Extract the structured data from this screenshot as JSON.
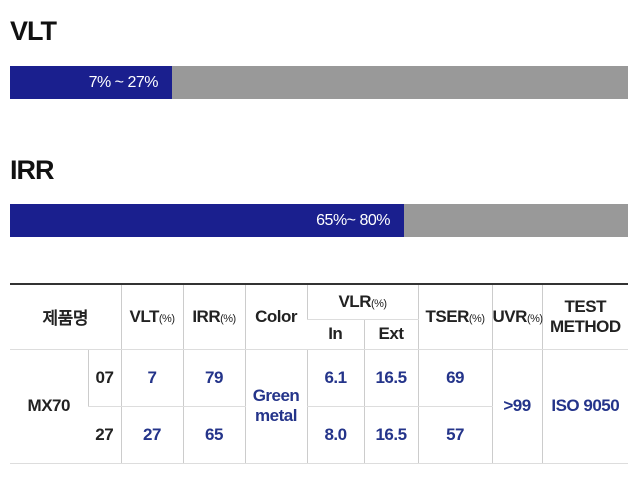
{
  "sections": [
    {
      "title": "VLT",
      "range_label": "7% ~ 27%"
    },
    {
      "title": "IRR",
      "range_label": "65%~ 80%"
    }
  ],
  "table": {
    "header": {
      "product": "제품명",
      "vlt": "VLT",
      "vlt_unit": "(%)",
      "irr": "IRR",
      "irr_unit": "(%)",
      "color": "Color",
      "vlr": "VLR",
      "vlr_unit": "(%)",
      "vlr_in": "In",
      "vlr_ext": "Ext",
      "tser": "TSER",
      "tser_unit": "(%)",
      "uvr": "UVR",
      "uvr_unit": "(%)",
      "test": "TEST METHOD"
    },
    "model": "MX70",
    "color": "Green metal",
    "uvr": ">99",
    "test": "ISO 9050",
    "rows": [
      {
        "variant": "07",
        "vlt": "7",
        "irr": "79",
        "vlr_in": "6.1",
        "vlr_ext": "16.5",
        "tser": "69"
      },
      {
        "variant": "27",
        "vlt": "27",
        "irr": "65",
        "vlr_in": "8.0",
        "vlr_ext": "16.5",
        "tser": "57"
      }
    ]
  }
}
